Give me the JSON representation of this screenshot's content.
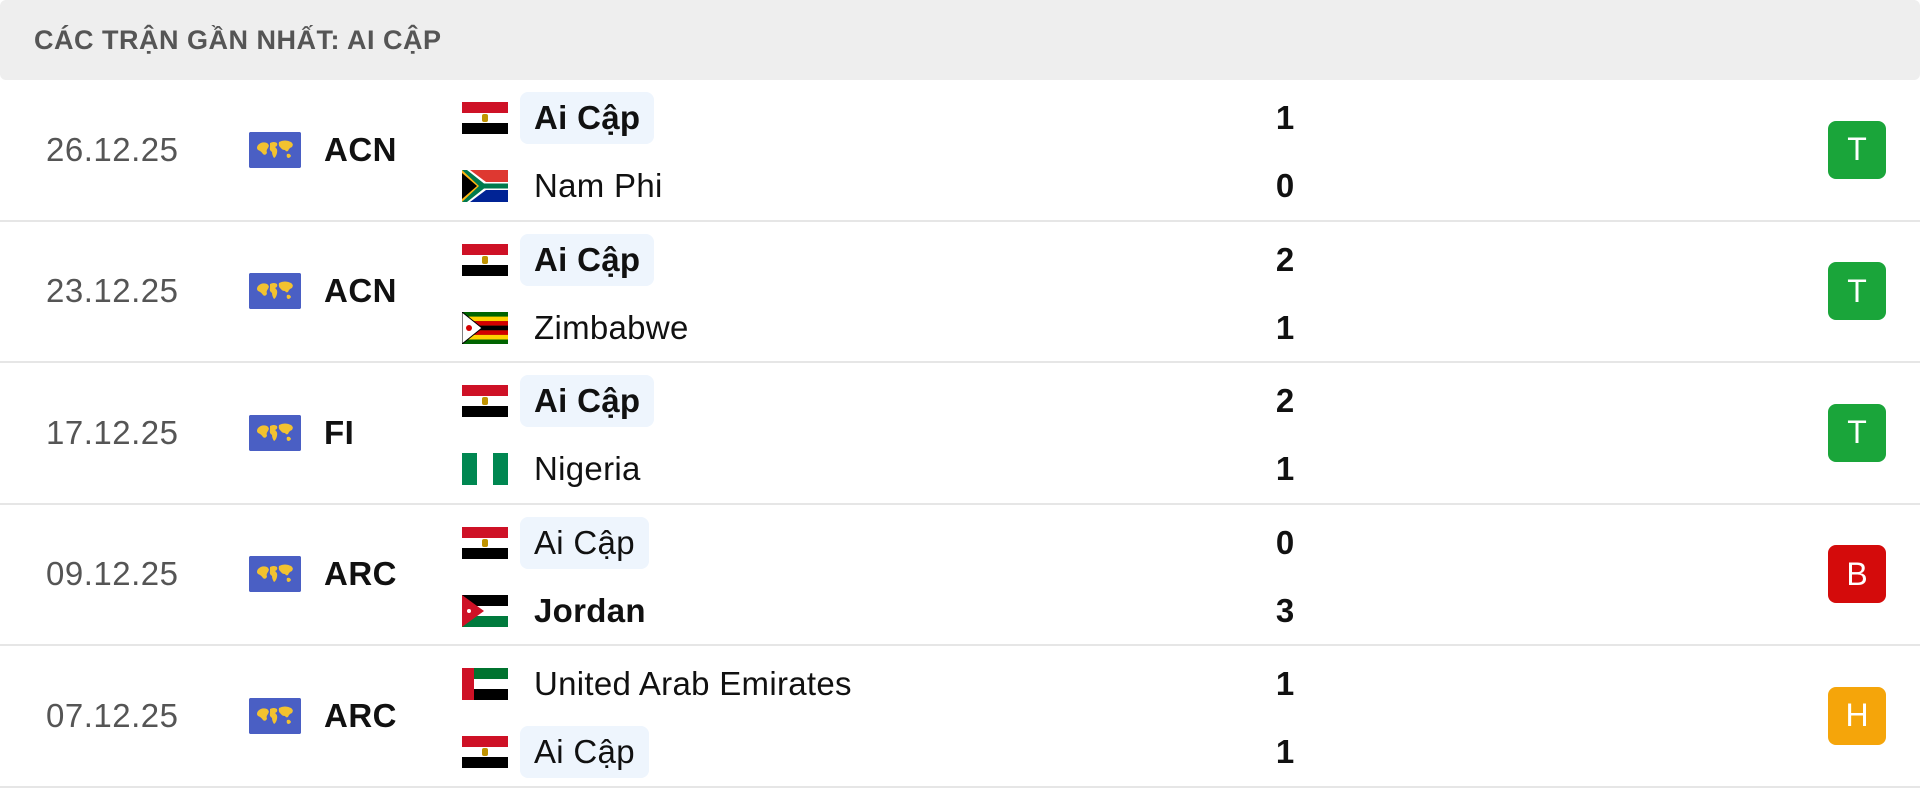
{
  "header": {
    "title": "CÁC TRẬN GẦN NHẤT: AI CẬP"
  },
  "matches": [
    {
      "date": "26.12.25",
      "league": "ACN",
      "home": {
        "name": "Ai Cập",
        "flag": "egypt",
        "score": "1",
        "highlight": true,
        "winner": true
      },
      "away": {
        "name": "Nam Phi",
        "flag": "south-africa",
        "score": "0",
        "highlight": false,
        "winner": false
      },
      "result": "T",
      "result_color": "#1aa53a"
    },
    {
      "date": "23.12.25",
      "league": "ACN",
      "home": {
        "name": "Ai Cập",
        "flag": "egypt",
        "score": "2",
        "highlight": true,
        "winner": true
      },
      "away": {
        "name": "Zimbabwe",
        "flag": "zimbabwe",
        "score": "1",
        "highlight": false,
        "winner": false
      },
      "result": "T",
      "result_color": "#1aa53a"
    },
    {
      "date": "17.12.25",
      "league": "FI",
      "home": {
        "name": "Ai Cập",
        "flag": "egypt",
        "score": "2",
        "highlight": true,
        "winner": true
      },
      "away": {
        "name": "Nigeria",
        "flag": "nigeria",
        "score": "1",
        "highlight": false,
        "winner": false
      },
      "result": "T",
      "result_color": "#1aa53a"
    },
    {
      "date": "09.12.25",
      "league": "ARC",
      "home": {
        "name": "Ai Cập",
        "flag": "egypt",
        "score": "0",
        "highlight": true,
        "winner": false
      },
      "away": {
        "name": "Jordan",
        "flag": "jordan",
        "score": "3",
        "highlight": false,
        "winner": true
      },
      "result": "B",
      "result_color": "#d40b0b"
    },
    {
      "date": "07.12.25",
      "league": "ARC",
      "home": {
        "name": "United Arab Emirates",
        "flag": "uae",
        "score": "1",
        "highlight": false,
        "winner": false
      },
      "away": {
        "name": "Ai Cập",
        "flag": "egypt",
        "score": "1",
        "highlight": true,
        "winner": false
      },
      "result": "H",
      "result_color": "#f5a50a"
    }
  ],
  "league_icon": "world-map-icon"
}
